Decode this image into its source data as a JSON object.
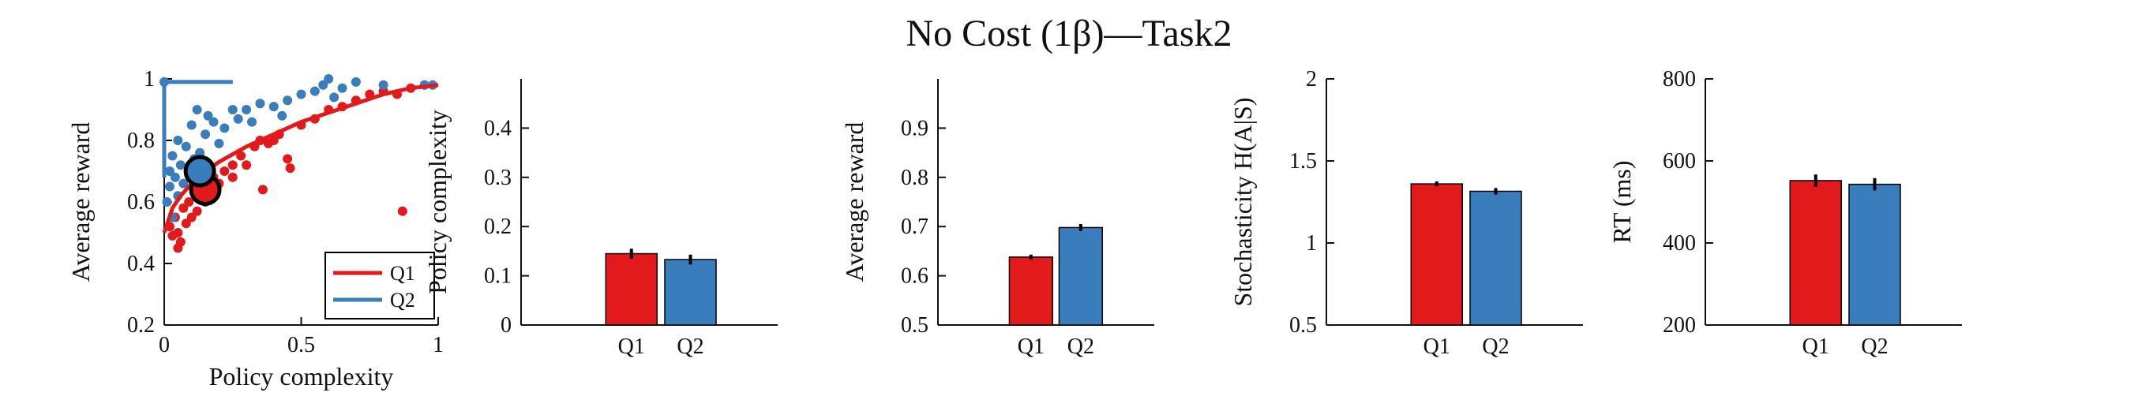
{
  "figure": {
    "title": "No Cost (1β)—Task2"
  },
  "colors": {
    "q1": "#e31a1c",
    "q2": "#3a7dbd",
    "axis": "#111111"
  },
  "chart_data": [
    {
      "type": "scatter",
      "xlabel": "Policy complexity",
      "ylabel": "Average reward",
      "xlim": [
        0,
        1
      ],
      "ylim": [
        0.2,
        1.0
      ],
      "xticks": [
        0,
        0.5,
        1
      ],
      "xtick_labels": [
        "0",
        "0.5",
        "1"
      ],
      "yticks": [
        0.2,
        0.4,
        0.6,
        0.8,
        1.0
      ],
      "ytick_labels": [
        "0.2",
        "0.4",
        "0.6",
        "0.8",
        "1"
      ],
      "legend": {
        "position": "bottom-right",
        "entries": [
          "Q1",
          "Q2"
        ]
      },
      "series": [
        {
          "name": "Q1",
          "points": [
            [
              0.02,
              0.52
            ],
            [
              0.03,
              0.49
            ],
            [
              0.04,
              0.55
            ],
            [
              0.05,
              0.5
            ],
            [
              0.06,
              0.47
            ],
            [
              0.07,
              0.58
            ],
            [
              0.08,
              0.53
            ],
            [
              0.09,
              0.6
            ],
            [
              0.1,
              0.55
            ],
            [
              0.12,
              0.57
            ],
            [
              0.13,
              0.62
            ],
            [
              0.15,
              0.6
            ],
            [
              0.17,
              0.64
            ],
            [
              0.18,
              0.68
            ],
            [
              0.2,
              0.66
            ],
            [
              0.22,
              0.7
            ],
            [
              0.25,
              0.72
            ],
            [
              0.28,
              0.75
            ],
            [
              0.3,
              0.72
            ],
            [
              0.33,
              0.78
            ],
            [
              0.35,
              0.8
            ],
            [
              0.38,
              0.79
            ],
            [
              0.4,
              0.8
            ],
            [
              0.42,
              0.82
            ],
            [
              0.45,
              0.74
            ],
            [
              0.46,
              0.71
            ],
            [
              0.5,
              0.85
            ],
            [
              0.55,
              0.87
            ],
            [
              0.6,
              0.9
            ],
            [
              0.65,
              0.91
            ],
            [
              0.7,
              0.93
            ],
            [
              0.75,
              0.95
            ],
            [
              0.8,
              0.96
            ],
            [
              0.85,
              0.95
            ],
            [
              0.87,
              0.57
            ],
            [
              0.9,
              0.97
            ],
            [
              0.95,
              0.98
            ],
            [
              0.36,
              0.64
            ],
            [
              0.25,
              0.68
            ],
            [
              0.05,
              0.45
            ]
          ],
          "curve": [
            [
              0.0,
              0.5
            ],
            [
              0.03,
              0.58
            ],
            [
              0.06,
              0.62
            ],
            [
              0.1,
              0.66
            ],
            [
              0.15,
              0.7
            ],
            [
              0.2,
              0.73
            ],
            [
              0.3,
              0.78
            ],
            [
              0.4,
              0.82
            ],
            [
              0.5,
              0.86
            ],
            [
              0.6,
              0.89
            ],
            [
              0.7,
              0.92
            ],
            [
              0.8,
              0.95
            ],
            [
              0.9,
              0.97
            ],
            [
              1.0,
              0.98
            ]
          ],
          "mean": [
            0.15,
            0.64
          ],
          "mean_error": [
            0.01,
            0.015
          ]
        },
        {
          "name": "Q2",
          "points": [
            [
              0.0,
              0.99
            ],
            [
              0.01,
              0.6
            ],
            [
              0.02,
              0.65
            ],
            [
              0.02,
              0.7
            ],
            [
              0.03,
              0.75
            ],
            [
              0.03,
              0.55
            ],
            [
              0.04,
              0.68
            ],
            [
              0.05,
              0.8
            ],
            [
              0.05,
              0.62
            ],
            [
              0.06,
              0.72
            ],
            [
              0.07,
              0.66
            ],
            [
              0.08,
              0.78
            ],
            [
              0.09,
              0.71
            ],
            [
              0.1,
              0.85
            ],
            [
              0.11,
              0.74
            ],
            [
              0.12,
              0.9
            ],
            [
              0.13,
              0.76
            ],
            [
              0.15,
              0.82
            ],
            [
              0.16,
              0.88
            ],
            [
              0.18,
              0.86
            ],
            [
              0.2,
              0.79
            ],
            [
              0.22,
              0.84
            ],
            [
              0.25,
              0.9
            ],
            [
              0.27,
              0.87
            ],
            [
              0.3,
              0.9
            ],
            [
              0.32,
              0.86
            ],
            [
              0.35,
              0.92
            ],
            [
              0.4,
              0.91
            ],
            [
              0.43,
              0.88
            ],
            [
              0.45,
              0.93
            ],
            [
              0.5,
              0.95
            ],
            [
              0.55,
              0.96
            ],
            [
              0.58,
              0.98
            ],
            [
              0.6,
              1.0
            ],
            [
              0.62,
              0.94
            ],
            [
              0.65,
              0.97
            ],
            [
              0.7,
              0.99
            ],
            [
              0.8,
              0.98
            ],
            [
              0.95,
              0.98
            ],
            [
              0.98,
              0.98
            ]
          ],
          "curve": [
            [
              0.0,
              0.99
            ],
            [
              0.0,
              0.68
            ],
            [
              0.0,
              0.99
            ],
            [
              0.25,
              0.99
            ]
          ],
          "mean": [
            0.13,
            0.7
          ],
          "mean_error": [
            0.01,
            0.015
          ]
        }
      ]
    },
    {
      "type": "bar",
      "categories": [
        "Q1",
        "Q2"
      ],
      "ylabel": "Policy complexity",
      "ylim": [
        0,
        0.5
      ],
      "yticks": [
        0,
        0.1,
        0.2,
        0.3,
        0.4
      ],
      "ytick_labels": [
        "0",
        "0.1",
        "0.2",
        "0.3",
        "0.4"
      ],
      "values": [
        0.145,
        0.133
      ],
      "errors": [
        0.01,
        0.01
      ]
    },
    {
      "type": "bar",
      "categories": [
        "Q1",
        "Q2"
      ],
      "ylabel": "Average reward",
      "ylim": [
        0.5,
        1.0
      ],
      "yticks": [
        0.5,
        0.6,
        0.7,
        0.8,
        0.9
      ],
      "ytick_labels": [
        "0.5",
        "0.6",
        "0.7",
        "0.8",
        "0.9"
      ],
      "values": [
        0.638,
        0.698
      ],
      "errors": [
        0.005,
        0.007
      ]
    },
    {
      "type": "bar",
      "categories": [
        "Q1",
        "Q2"
      ],
      "ylabel": "Stochasticity H(A|S)",
      "ylim": [
        0.5,
        2.0
      ],
      "yticks": [
        0.5,
        1.0,
        1.5,
        2.0
      ],
      "ytick_labels": [
        "0.5",
        "1",
        "1.5",
        "2"
      ],
      "values": [
        1.36,
        1.315
      ],
      "errors": [
        0.015,
        0.02
      ]
    },
    {
      "type": "bar",
      "categories": [
        "Q1",
        "Q2"
      ],
      "ylabel": "RT (ms)",
      "ylim": [
        200,
        800
      ],
      "yticks": [
        200,
        400,
        600,
        800
      ],
      "ytick_labels": [
        "200",
        "400",
        "600",
        "800"
      ],
      "values": [
        552,
        543
      ],
      "errors": [
        15,
        15
      ]
    }
  ]
}
